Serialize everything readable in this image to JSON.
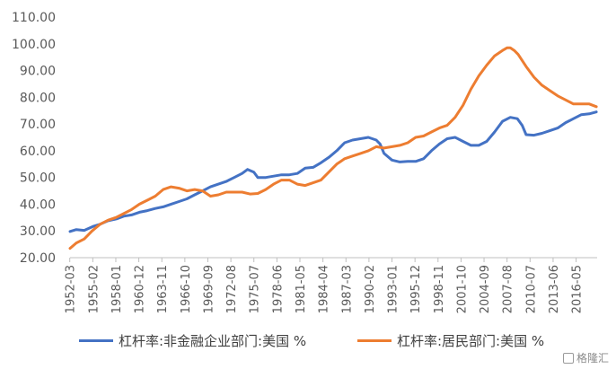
{
  "chart_data": {
    "type": "line",
    "ylim": [
      20,
      110
    ],
    "yticks": [
      "20.00",
      "30.00",
      "40.00",
      "50.00",
      "60.00",
      "70.00",
      "80.00",
      "90.00",
      "100.00",
      "110.00"
    ],
    "xticks": [
      "1952-03",
      "1955-02",
      "1958-01",
      "1960-12",
      "1963-11",
      "1966-10",
      "1969-09",
      "1972-08",
      "1975-07",
      "1978-06",
      "1981-05",
      "1984-04",
      "1987-03",
      "1990-02",
      "1993-01",
      "1995-12",
      "1998-11",
      "2001-10",
      "2004-09",
      "2007-08",
      "2010-07",
      "2013-06",
      "2016-05"
    ],
    "x_range": [
      1952.2,
      2019.0
    ],
    "grid": false,
    "legend_position": "bottom",
    "series": [
      {
        "name": "杠杆率:非金融企业部门:美国 %",
        "color": "#4472C4",
        "x": [
          1952.2,
          1953.0,
          1954.0,
          1955.2,
          1956.0,
          1957.0,
          1958.1,
          1959.0,
          1960.0,
          1961.0,
          1962.0,
          1963.0,
          1964.0,
          1965.0,
          1966.0,
          1967.0,
          1968.0,
          1969.0,
          1970.0,
          1971.0,
          1972.0,
          1973.0,
          1974.0,
          1974.7,
          1975.5,
          1976.0,
          1977.0,
          1978.0,
          1979.0,
          1980.0,
          1981.0,
          1982.0,
          1983.0,
          1984.0,
          1985.0,
          1986.0,
          1987.0,
          1988.0,
          1989.0,
          1990.0,
          1991.0,
          1991.5,
          1992.0,
          1993.0,
          1994.0,
          1995.0,
          1996.0,
          1997.0,
          1998.0,
          1999.0,
          2000.0,
          2001.0,
          2002.0,
          2003.0,
          2004.0,
          2005.0,
          2006.0,
          2007.0,
          2008.0,
          2008.9,
          2009.5,
          2010.0,
          2011.0,
          2012.0,
          2013.0,
          2014.0,
          2015.0,
          2016.0,
          2017.0,
          2018.0,
          2018.9
        ],
        "y": [
          29.8,
          30.5,
          30.2,
          31.8,
          32.5,
          33.8,
          34.5,
          35.5,
          36.0,
          37.0,
          37.6,
          38.4,
          39.0,
          40.0,
          41.0,
          42.0,
          43.5,
          45.0,
          46.5,
          47.5,
          48.5,
          50.0,
          51.5,
          53.0,
          52.0,
          50.0,
          50.0,
          50.5,
          51.0,
          51.0,
          51.5,
          53.5,
          53.8,
          55.5,
          57.5,
          60.0,
          63.0,
          64.0,
          64.5,
          65.0,
          64.0,
          62.5,
          59.0,
          56.5,
          55.8,
          56.0,
          56.0,
          57.0,
          60.0,
          62.5,
          64.5,
          65.0,
          63.5,
          62.0,
          62.0,
          63.5,
          67.0,
          71.0,
          72.5,
          72.0,
          69.5,
          66.0,
          65.8,
          66.5,
          67.5,
          68.5,
          70.5,
          72.0,
          73.5,
          73.8,
          74.5
        ]
      },
      {
        "name": "杠杆率:居民部门:美国 %",
        "color": "#ED7D31",
        "x": [
          1952.2,
          1953.0,
          1954.0,
          1955.0,
          1956.0,
          1957.0,
          1958.0,
          1959.0,
          1960.0,
          1961.0,
          1962.0,
          1963.0,
          1964.0,
          1965.0,
          1966.0,
          1967.0,
          1968.0,
          1969.0,
          1970.0,
          1971.0,
          1972.0,
          1973.0,
          1974.0,
          1975.0,
          1976.0,
          1977.0,
          1978.0,
          1979.0,
          1980.0,
          1981.0,
          1982.0,
          1983.0,
          1984.0,
          1985.0,
          1986.0,
          1987.0,
          1988.0,
          1989.0,
          1990.0,
          1991.0,
          1992.0,
          1993.0,
          1994.0,
          1995.0,
          1996.0,
          1997.0,
          1998.0,
          1999.0,
          2000.0,
          2001.0,
          2002.0,
          2003.0,
          2004.0,
          2005.0,
          2006.0,
          2007.0,
          2007.6,
          2008.0,
          2008.5,
          2009.0,
          2010.0,
          2011.0,
          2012.0,
          2013.0,
          2014.0,
          2015.0,
          2016.0,
          2017.0,
          2018.0,
          2018.9
        ],
        "y": [
          23.5,
          25.5,
          27.0,
          30.0,
          32.5,
          34.0,
          35.0,
          36.5,
          38.0,
          40.0,
          41.5,
          43.0,
          45.5,
          46.5,
          46.0,
          45.0,
          45.5,
          45.0,
          43.0,
          43.5,
          44.5,
          44.5,
          44.5,
          43.8,
          44.0,
          45.5,
          47.5,
          49.0,
          49.0,
          47.5,
          47.0,
          48.0,
          49.0,
          52.0,
          55.0,
          57.0,
          58.0,
          59.0,
          60.0,
          61.5,
          61.0,
          61.5,
          62.0,
          63.0,
          65.0,
          65.5,
          67.0,
          68.5,
          69.5,
          72.5,
          77.0,
          83.0,
          88.0,
          92.0,
          95.5,
          97.5,
          98.5,
          98.5,
          97.5,
          96.0,
          91.5,
          87.5,
          84.5,
          82.5,
          80.5,
          79.0,
          77.5,
          77.5,
          77.5,
          76.5
        ]
      }
    ]
  },
  "watermark": "格隆汇"
}
